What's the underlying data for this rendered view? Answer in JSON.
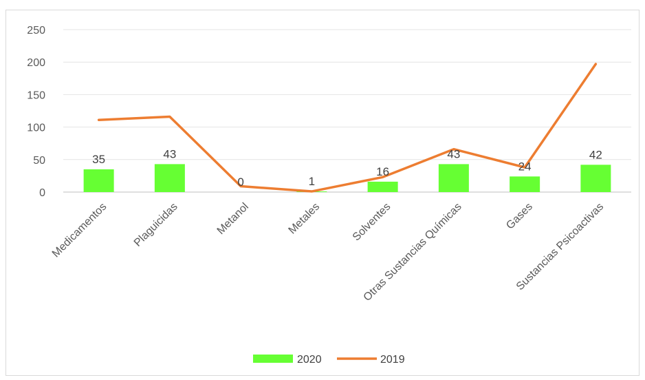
{
  "chart_data": {
    "type": "bar",
    "categories": [
      "Medicamentos",
      "Plaguicidas",
      "Metanol",
      "Metales",
      "Solventes",
      "Otras Sustancias Químicas",
      "Gases",
      "Sustancias Psicoactivas"
    ],
    "series": [
      {
        "name": "2020",
        "type": "bar",
        "values": [
          35,
          43,
          0,
          1,
          16,
          43,
          24,
          42
        ],
        "color": "#66ff33"
      },
      {
        "name": "2019",
        "type": "line",
        "values": [
          111,
          116,
          9,
          1,
          23,
          66,
          38,
          197
        ],
        "color": "#ed7d31"
      }
    ],
    "ylim": [
      0,
      250
    ],
    "yticks": [
      0,
      50,
      100,
      150,
      200,
      250
    ],
    "grid": true,
    "legend": "bottom"
  }
}
